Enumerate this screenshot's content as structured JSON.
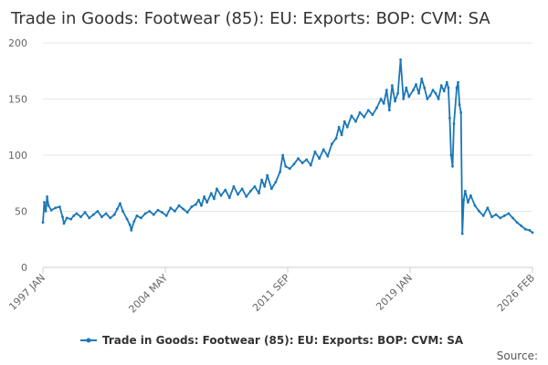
{
  "chart_data": {
    "type": "line",
    "title": "Trade in Goods: Footwear (85): EU: Exports: BOP: CVM: SA",
    "xlabel": "",
    "ylabel": "",
    "x_tick_labels": [
      "1997 JAN",
      "2004 MAY",
      "2011 SEP",
      "2019 JAN",
      "2026 FEB"
    ],
    "x_range": [
      "1997-01",
      "2026-02"
    ],
    "ylim": [
      0,
      200
    ],
    "y_ticks": [
      0,
      50,
      100,
      150,
      200
    ],
    "grid": true,
    "legend_position": "bottom",
    "series": [
      {
        "name": "Trade in Goods: Footwear (85): EU: Exports: BOP: CVM: SA",
        "color": "#1b77b8",
        "points": [
          [
            "1997-01",
            40
          ],
          [
            "1997-02",
            58
          ],
          [
            "1997-03",
            50
          ],
          [
            "1997-04",
            63
          ],
          [
            "1997-05",
            55
          ],
          [
            "1997-07",
            51
          ],
          [
            "1997-10",
            53
          ],
          [
            "1998-01",
            54
          ],
          [
            "1998-03",
            45
          ],
          [
            "1998-04",
            39
          ],
          [
            "1998-06",
            44
          ],
          [
            "1998-09",
            43
          ],
          [
            "1998-11",
            46
          ],
          [
            "1999-01",
            48
          ],
          [
            "1999-04",
            45
          ],
          [
            "1999-07",
            49
          ],
          [
            "1999-10",
            44
          ],
          [
            "2000-01",
            47
          ],
          [
            "2000-04",
            50
          ],
          [
            "2000-07",
            45
          ],
          [
            "2000-10",
            48
          ],
          [
            "2001-01",
            44
          ],
          [
            "2001-04",
            47
          ],
          [
            "2001-06",
            52
          ],
          [
            "2001-08",
            57
          ],
          [
            "2001-10",
            50
          ],
          [
            "2002-01",
            43
          ],
          [
            "2002-03",
            38
          ],
          [
            "2002-04",
            33
          ],
          [
            "2002-06",
            41
          ],
          [
            "2002-08",
            46
          ],
          [
            "2002-11",
            44
          ],
          [
            "2003-02",
            48
          ],
          [
            "2003-05",
            50
          ],
          [
            "2003-08",
            47
          ],
          [
            "2003-11",
            51
          ],
          [
            "2004-02",
            49
          ],
          [
            "2004-05",
            46
          ],
          [
            "2004-08",
            53
          ],
          [
            "2004-11",
            50
          ],
          [
            "2005-02",
            55
          ],
          [
            "2005-05",
            52
          ],
          [
            "2005-08",
            49
          ],
          [
            "2005-11",
            54
          ],
          [
            "2006-02",
            56
          ],
          [
            "2006-04",
            60
          ],
          [
            "2006-06",
            55
          ],
          [
            "2006-08",
            63
          ],
          [
            "2006-10",
            58
          ],
          [
            "2007-01",
            66
          ],
          [
            "2007-03",
            61
          ],
          [
            "2007-05",
            70
          ],
          [
            "2007-08",
            64
          ],
          [
            "2007-11",
            69
          ],
          [
            "2008-02",
            62
          ],
          [
            "2008-05",
            72
          ],
          [
            "2008-08",
            65
          ],
          [
            "2008-11",
            70
          ],
          [
            "2009-02",
            63
          ],
          [
            "2009-05",
            68
          ],
          [
            "2009-08",
            72
          ],
          [
            "2009-11",
            66
          ],
          [
            "2010-01",
            78
          ],
          [
            "2010-03",
            72
          ],
          [
            "2010-05",
            82
          ],
          [
            "2010-08",
            70
          ],
          [
            "2010-11",
            76
          ],
          [
            "2011-02",
            85
          ],
          [
            "2011-04",
            100
          ],
          [
            "2011-06",
            90
          ],
          [
            "2011-09",
            88
          ],
          [
            "2011-12",
            92
          ],
          [
            "2012-03",
            97
          ],
          [
            "2012-06",
            93
          ],
          [
            "2012-09",
            96
          ],
          [
            "2012-12",
            91
          ],
          [
            "2013-03",
            103
          ],
          [
            "2013-06",
            97
          ],
          [
            "2013-09",
            105
          ],
          [
            "2013-12",
            99
          ],
          [
            "2014-03",
            110
          ],
          [
            "2014-06",
            115
          ],
          [
            "2014-08",
            125
          ],
          [
            "2014-10",
            118
          ],
          [
            "2014-12",
            130
          ],
          [
            "2015-02",
            125
          ],
          [
            "2015-05",
            135
          ],
          [
            "2015-08",
            130
          ],
          [
            "2015-11",
            138
          ],
          [
            "2016-02",
            134
          ],
          [
            "2016-05",
            140
          ],
          [
            "2016-08",
            136
          ],
          [
            "2016-11",
            142
          ],
          [
            "2017-02",
            150
          ],
          [
            "2017-04",
            146
          ],
          [
            "2017-06",
            158
          ],
          [
            "2017-08",
            140
          ],
          [
            "2017-10",
            162
          ],
          [
            "2017-12",
            148
          ],
          [
            "2018-02",
            155
          ],
          [
            "2018-04",
            185
          ],
          [
            "2018-06",
            150
          ],
          [
            "2018-08",
            160
          ],
          [
            "2018-10",
            152
          ],
          [
            "2019-01",
            158
          ],
          [
            "2019-03",
            163
          ],
          [
            "2019-05",
            155
          ],
          [
            "2019-07",
            168
          ],
          [
            "2019-09",
            160
          ],
          [
            "2019-11",
            150
          ],
          [
            "2020-01",
            153
          ],
          [
            "2020-03",
            158
          ],
          [
            "2020-05",
            155
          ],
          [
            "2020-07",
            150
          ],
          [
            "2020-09",
            162
          ],
          [
            "2020-11",
            157
          ],
          [
            "2021-01",
            165
          ],
          [
            "2021-02",
            160
          ],
          [
            "2021-03",
            133
          ],
          [
            "2021-04",
            100
          ],
          [
            "2021-05",
            90
          ],
          [
            "2021-06",
            128
          ],
          [
            "2021-08",
            160
          ],
          [
            "2021-09",
            165
          ],
          [
            "2021-10",
            145
          ],
          [
            "2021-11",
            138
          ],
          [
            "2021-12",
            30
          ],
          [
            "2022-01",
            60
          ],
          [
            "2022-02",
            68
          ],
          [
            "2022-04",
            58
          ],
          [
            "2022-06",
            64
          ],
          [
            "2022-09",
            55
          ],
          [
            "2022-12",
            50
          ],
          [
            "2023-03",
            46
          ],
          [
            "2023-06",
            53
          ],
          [
            "2023-09",
            45
          ],
          [
            "2023-12",
            47
          ],
          [
            "2024-03",
            44
          ],
          [
            "2024-06",
            46
          ],
          [
            "2024-09",
            48
          ],
          [
            "2024-12",
            44
          ],
          [
            "2025-03",
            40
          ],
          [
            "2025-06",
            37
          ],
          [
            "2025-09",
            34
          ],
          [
            "2025-12",
            33
          ],
          [
            "2026-02",
            31
          ]
        ]
      }
    ]
  },
  "source_label": "Source:"
}
